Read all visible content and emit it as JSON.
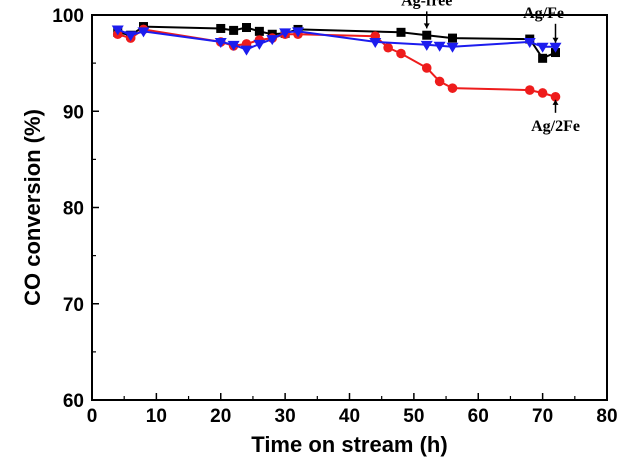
{
  "chart_data": {
    "type": "line",
    "xlabel": "Time on stream (h)",
    "ylabel": "CO conversion (%)",
    "xlim": [
      0,
      80
    ],
    "ylim": [
      60,
      100
    ],
    "xticks": [
      0,
      10,
      20,
      30,
      40,
      50,
      60,
      70,
      80
    ],
    "yticks": [
      60,
      70,
      80,
      90,
      100
    ],
    "grid": false,
    "legend": "none",
    "series": [
      {
        "name": "Ag-free",
        "color": "#000000",
        "marker": "square",
        "x": [
          4,
          6,
          8,
          20,
          22,
          24,
          26,
          28,
          30,
          32,
          48,
          52,
          56,
          68,
          70,
          72
        ],
        "y": [
          98.2,
          97.9,
          98.8,
          98.6,
          98.4,
          98.7,
          98.3,
          98.0,
          98.1,
          98.5,
          98.2,
          97.9,
          97.6,
          97.5,
          95.5,
          96.1
        ]
      },
      {
        "name": "Ag/2Fe",
        "color": "#ee1c1c",
        "marker": "circle",
        "x": [
          4,
          6,
          8,
          20,
          22,
          24,
          26,
          28,
          30,
          32,
          44,
          46,
          48,
          52,
          54,
          56,
          68,
          70,
          72
        ],
        "y": [
          98.0,
          97.6,
          98.5,
          97.2,
          96.8,
          97.0,
          97.4,
          97.6,
          98.0,
          98.0,
          97.8,
          96.6,
          96.0,
          94.5,
          93.1,
          92.4,
          92.2,
          91.9,
          91.5
        ]
      },
      {
        "name": "Ag/Fe",
        "color": "#1c1cee",
        "marker": "triangle-down",
        "x": [
          4,
          6,
          8,
          20,
          22,
          24,
          26,
          28,
          30,
          32,
          44,
          52,
          54,
          56,
          68,
          70,
          72
        ],
        "y": [
          98.5,
          97.9,
          98.3,
          97.2,
          96.9,
          96.4,
          97.0,
          97.5,
          98.2,
          98.3,
          97.2,
          96.9,
          96.8,
          96.7,
          97.2,
          96.7,
          96.7
        ]
      }
    ],
    "annotations": [
      {
        "text": "Ag-free",
        "x": 52,
        "y": 98.3,
        "series": "Ag-free"
      },
      {
        "text": "Ag/Fe",
        "x": 72,
        "y": 96.8,
        "series": "Ag/Fe"
      },
      {
        "text": "Ag/2Fe",
        "x": 72,
        "y": 91.5,
        "series": "Ag/2Fe"
      }
    ]
  }
}
